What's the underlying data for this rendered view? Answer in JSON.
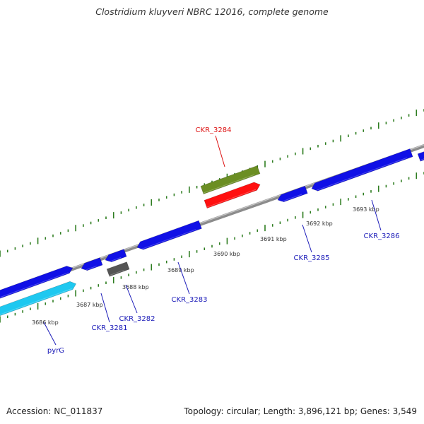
{
  "title": "Clostridium kluyveri NBRC 12016, complete genome",
  "footer": {
    "accession": "Accession: NC_011837",
    "summary": "Topology: circular; Length: 3,896,121 bp; Genes: 3,549"
  },
  "colors": {
    "backbone": "#8c8c8c",
    "tick": "#2e7d20",
    "gene_forward": "#1010e6",
    "gene_reverse": "#1010e6",
    "gene_rRNA": "#6b8e23",
    "gene_highlight": "#ff1010",
    "gene_cyan": "#1ec8f0",
    "gene_gray": "#555555",
    "label_blue": "#1a1ab8",
    "label_red": "#dd1111"
  },
  "scale_labels": [
    "3686 kbp",
    "3687 kbp",
    "3688 kbp",
    "3689 kbp",
    "3690 kbp",
    "3691 kbp",
    "3692 kbp",
    "3693 kbp"
  ],
  "gene_labels": [
    {
      "name": "pyrG",
      "color": "label_blue"
    },
    {
      "name": "CKR_3281",
      "color": "label_blue"
    },
    {
      "name": "CKR_3282",
      "color": "label_blue"
    },
    {
      "name": "CKR_3283",
      "color": "label_blue"
    },
    {
      "name": "CKR_3284",
      "color": "label_red"
    },
    {
      "name": "CKR_3285",
      "color": "label_blue"
    },
    {
      "name": "CKR_3286",
      "color": "label_blue"
    }
  ]
}
